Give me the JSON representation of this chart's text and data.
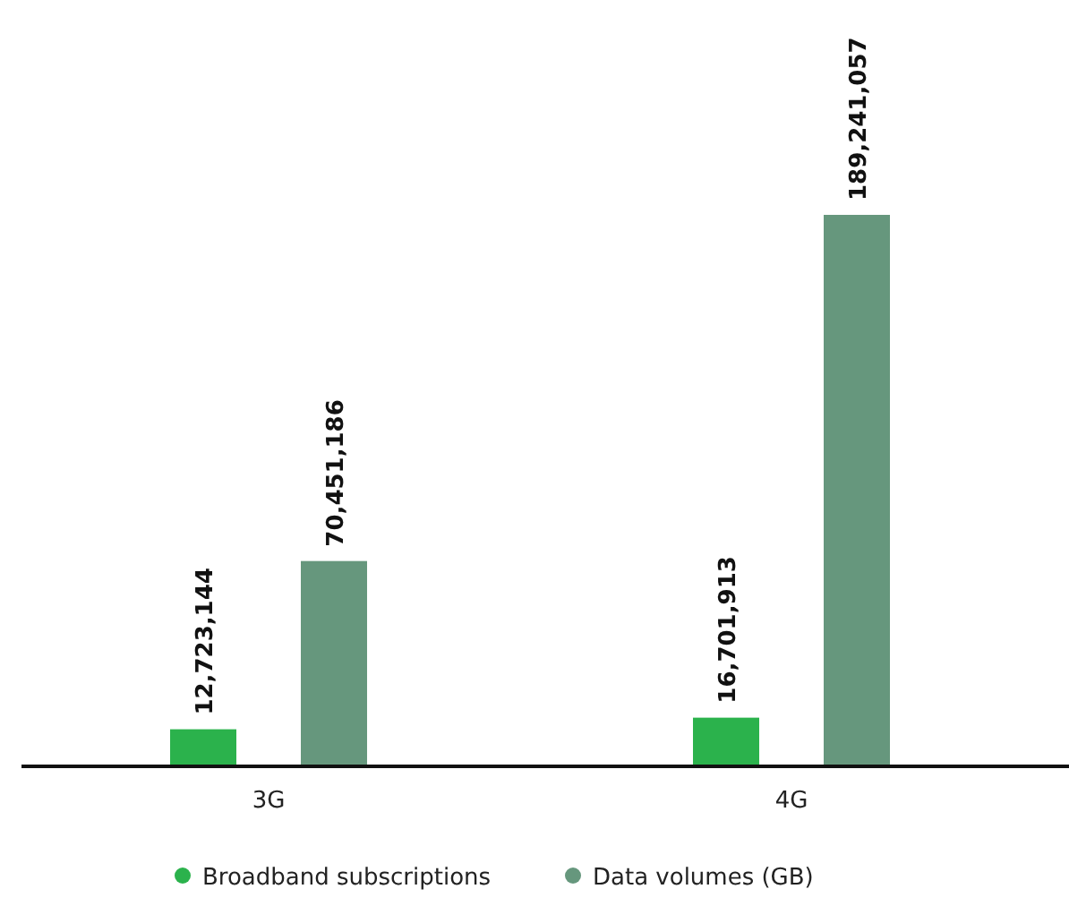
{
  "chart_data": {
    "type": "bar",
    "categories": [
      "3G",
      "4G"
    ],
    "series": [
      {
        "name": "Broadband subscriptions",
        "color": "#2bb24c",
        "values": [
          12723144,
          16701913
        ],
        "value_labels": [
          "12,723,144",
          "16,701,913"
        ]
      },
      {
        "name": "Data volumes (GB)",
        "color": "#66977d",
        "values": [
          70451186,
          189241057
        ],
        "value_labels": [
          "70,451,186",
          "189,241,057"
        ]
      }
    ],
    "legend": "bottom"
  }
}
